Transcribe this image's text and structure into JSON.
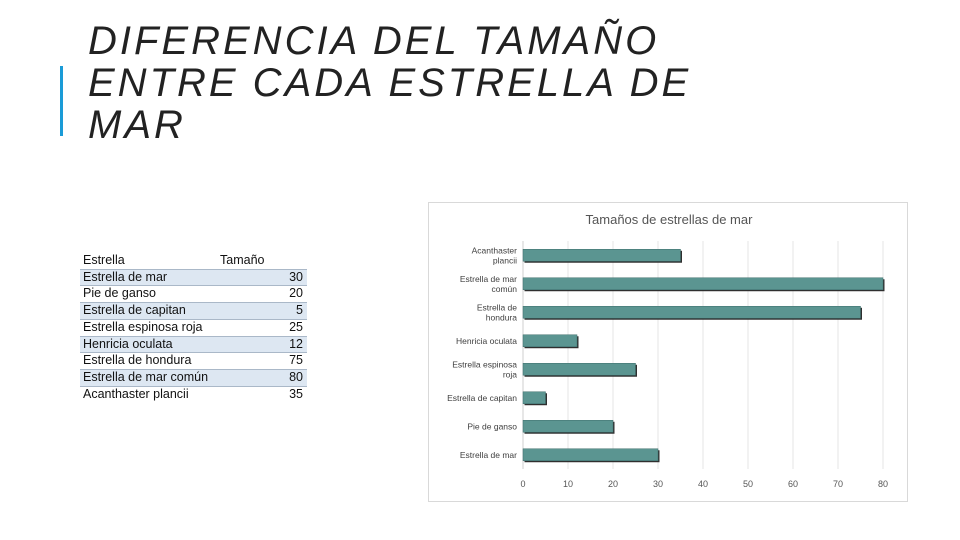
{
  "slide": {
    "title_lines": [
      "DIFERENCIA DEL TAMAÑO",
      "ENTRE CADA ESTRELLA DE",
      "MAR"
    ]
  },
  "table": {
    "headers": [
      "Estrella",
      "Tamaño"
    ],
    "rows": [
      {
        "name": "Estrella de mar",
        "value": "30"
      },
      {
        "name": "Pie de ganso",
        "value": "20"
      },
      {
        "name": "Estrella de capitan",
        "value": "5"
      },
      {
        "name": "Estrella espinosa roja",
        "value": "25"
      },
      {
        "name": "Henricia oculata",
        "value": "12"
      },
      {
        "name": "Estrella de hondura",
        "value": "75"
      },
      {
        "name": "Estrella de mar común",
        "value": "80"
      },
      {
        "name": "Acanthaster plancii",
        "value": "35"
      }
    ]
  },
  "colors": {
    "bar_fill": "#5b9591",
    "bar_shadow": "#2f2f2f",
    "accent": "#1a9bd7",
    "table_band": "#dde7f2"
  },
  "chart_data": {
    "type": "bar",
    "orientation": "horizontal",
    "title": "Tamaños de estrellas de mar",
    "categories": [
      [
        "Acanthaster",
        "plancii"
      ],
      [
        "Estrella de mar",
        "común"
      ],
      [
        "Estrella de",
        "hondura"
      ],
      [
        "Henricia oculata"
      ],
      [
        "Estrella espinosa",
        "roja"
      ],
      [
        "Estrella de capitan"
      ],
      [
        "Pie de ganso"
      ],
      [
        "Estrella de mar"
      ]
    ],
    "values": [
      35,
      80,
      75,
      12,
      25,
      5,
      20,
      30
    ],
    "xlim": [
      0,
      80
    ],
    "xticks": [
      0,
      10,
      20,
      30,
      40,
      50,
      60,
      70,
      80
    ],
    "grid": true,
    "legend": "none"
  }
}
